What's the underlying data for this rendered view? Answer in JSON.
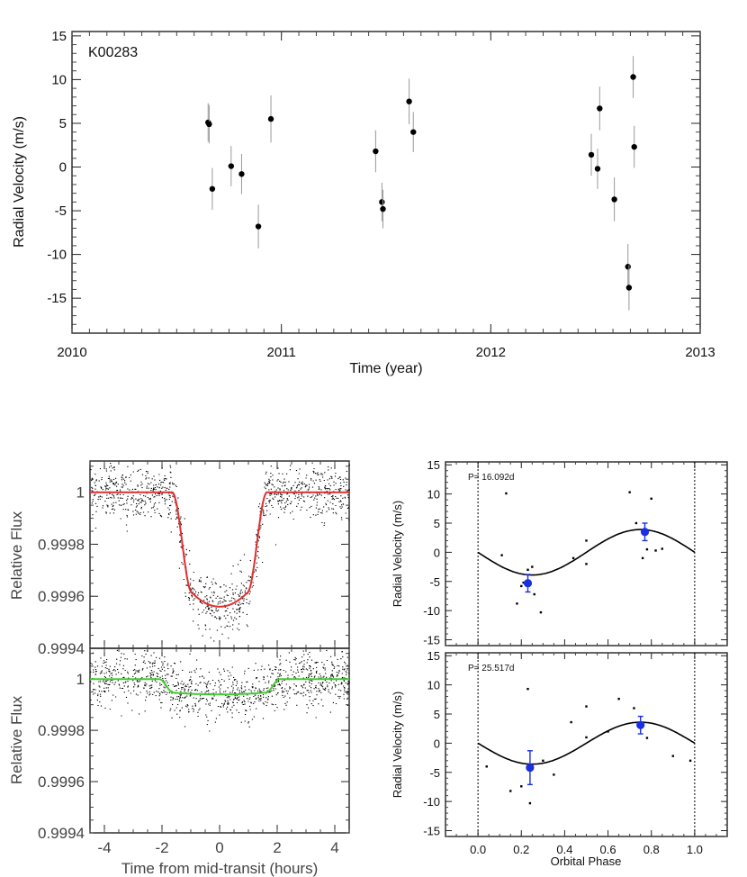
{
  "chart_data": [
    {
      "type": "scatter",
      "title": "",
      "annotation": "K00283",
      "xlabel": "Time (year)",
      "ylabel": "Radial Velocity (m/s)",
      "xlim": [
        2010,
        2013
      ],
      "ylim": [
        -19,
        15.5
      ],
      "xticks": [
        2010,
        2011,
        2012,
        2013
      ],
      "yticks": [
        -15,
        -10,
        -5,
        0,
        5,
        10,
        15
      ],
      "points": [
        {
          "x": 2010.65,
          "y": 5.1,
          "err": 2.2
        },
        {
          "x": 2010.655,
          "y": 4.9,
          "err": 2.2
        },
        {
          "x": 2010.67,
          "y": -2.5,
          "err": 2.4
        },
        {
          "x": 2010.76,
          "y": 0.1,
          "err": 2.3
        },
        {
          "x": 2010.81,
          "y": -0.8,
          "err": 2.3
        },
        {
          "x": 2010.89,
          "y": -6.8,
          "err": 2.5
        },
        {
          "x": 2010.95,
          "y": 5.5,
          "err": 2.7
        },
        {
          "x": 2011.45,
          "y": 1.8,
          "err": 2.4
        },
        {
          "x": 2011.48,
          "y": -4.0,
          "err": 2.2
        },
        {
          "x": 2011.485,
          "y": -4.8,
          "err": 2.2
        },
        {
          "x": 2011.61,
          "y": 7.5,
          "err": 2.6
        },
        {
          "x": 2011.63,
          "y": 4.0,
          "err": 2.3
        },
        {
          "x": 2012.48,
          "y": 1.4,
          "err": 2.4
        },
        {
          "x": 2012.51,
          "y": -0.2,
          "err": 2.3
        },
        {
          "x": 2012.52,
          "y": 6.7,
          "err": 2.5
        },
        {
          "x": 2012.59,
          "y": -3.7,
          "err": 2.5
        },
        {
          "x": 2012.655,
          "y": -11.4,
          "err": 2.6
        },
        {
          "x": 2012.66,
          "y": -13.8,
          "err": 2.6
        },
        {
          "x": 2012.68,
          "y": 10.3,
          "err": 2.4
        },
        {
          "x": 2012.685,
          "y": 2.3,
          "err": 2.4
        }
      ]
    },
    {
      "type": "scatter",
      "panel": "transit-top",
      "ylabel": "Relative Flux",
      "xlim": [
        -4.5,
        4.5
      ],
      "ylim": [
        0.9994,
        1.00012
      ],
      "yticks": [
        1,
        0.9998,
        0.9996
      ],
      "ytick_labels": [
        "1",
        "0.9998",
        "0.9996"
      ],
      "bottom_tick_label": "0.9994",
      "model_color": "#e03030",
      "model": {
        "depth": 0.00044,
        "t1": 1.65,
        "t2": 0.95
      }
    },
    {
      "type": "scatter",
      "panel": "transit-bottom",
      "xlabel": "Time from mid-transit (hours)",
      "ylabel": "Relative Flux",
      "xlim": [
        -4.5,
        4.5
      ],
      "ylim": [
        0.9994,
        1.00012
      ],
      "xticks": [
        -4,
        -2,
        0,
        2,
        4
      ],
      "yticks": [
        1,
        0.9998,
        0.9996,
        0.9994
      ],
      "ytick_labels": [
        "1",
        "0.9998",
        "0.9996",
        "0.9994"
      ],
      "model_color": "#44cc33",
      "model": {
        "depth": 6e-05,
        "t1": 2.1,
        "t2": 1.6
      }
    },
    {
      "type": "scatter",
      "panel": "rv-phase-top",
      "annotation": "P= 16.092d",
      "ylabel": "Radial Velocity (m/s)",
      "xlim": [
        -0.15,
        1.15
      ],
      "ylim": [
        -16,
        15.5
      ],
      "yticks": [
        -15,
        -10,
        -5,
        0,
        5,
        10,
        15
      ],
      "amplitude": 3.9,
      "binned_color": "#1a2fe0",
      "points": [
        [
          0.11,
          -0.5
        ],
        [
          0.18,
          -8.8
        ],
        [
          0.2,
          -5.8
        ],
        [
          0.21,
          -5.2
        ],
        [
          0.23,
          -3.0
        ],
        [
          0.26,
          -7.2
        ],
        [
          0.29,
          -10.3
        ],
        [
          0.25,
          -2.5
        ],
        [
          0.44,
          -1.0
        ],
        [
          0.5,
          2.0
        ],
        [
          0.5,
          -2.0
        ],
        [
          0.7,
          10.3
        ],
        [
          0.73,
          5.0
        ],
        [
          0.76,
          -1.0
        ],
        [
          0.78,
          0.5
        ],
        [
          0.8,
          9.2
        ],
        [
          0.82,
          0.3
        ],
        [
          0.85,
          0.6
        ],
        [
          0.13,
          10.1
        ]
      ],
      "binned": [
        {
          "x": 0.23,
          "y": -5.3,
          "err": 1.5
        },
        {
          "x": 0.77,
          "y": 3.5,
          "err": 1.5
        }
      ]
    },
    {
      "type": "scatter",
      "panel": "rv-phase-bottom",
      "annotation": "P= 25.517d",
      "xlabel": "Orbital Phase",
      "ylabel": "Radial Velocity (m/s)",
      "xlim": [
        -0.15,
        1.15
      ],
      "ylim": [
        -16,
        15.5
      ],
      "xticks": [
        0.0,
        0.2,
        0.4,
        0.6,
        0.8,
        1.0
      ],
      "xtick_labels": [
        "0.0",
        "0.2",
        "0.4",
        "0.6",
        "0.8",
        "1.0"
      ],
      "yticks": [
        -15,
        -10,
        -5,
        0,
        5,
        10,
        15
      ],
      "amplitude": 3.6,
      "binned_color": "#1a2fe0",
      "points": [
        [
          0.04,
          -4.0
        ],
        [
          0.15,
          -8.2
        ],
        [
          0.2,
          -7.4
        ],
        [
          0.23,
          9.3
        ],
        [
          0.24,
          -4.2
        ],
        [
          0.24,
          -10.3
        ],
        [
          0.3,
          -3.0
        ],
        [
          0.35,
          -5.4
        ],
        [
          0.43,
          3.6
        ],
        [
          0.5,
          6.3
        ],
        [
          0.5,
          1.0
        ],
        [
          0.6,
          2.0
        ],
        [
          0.65,
          7.6
        ],
        [
          0.72,
          6.0
        ],
        [
          0.75,
          2.8
        ],
        [
          0.78,
          0.9
        ],
        [
          0.9,
          -2.2
        ],
        [
          0.98,
          -3.0
        ]
      ],
      "binned": [
        {
          "x": 0.24,
          "y": -4.2,
          "err": 2.9
        },
        {
          "x": 0.75,
          "y": 3.1,
          "err": 1.5
        }
      ]
    }
  ]
}
